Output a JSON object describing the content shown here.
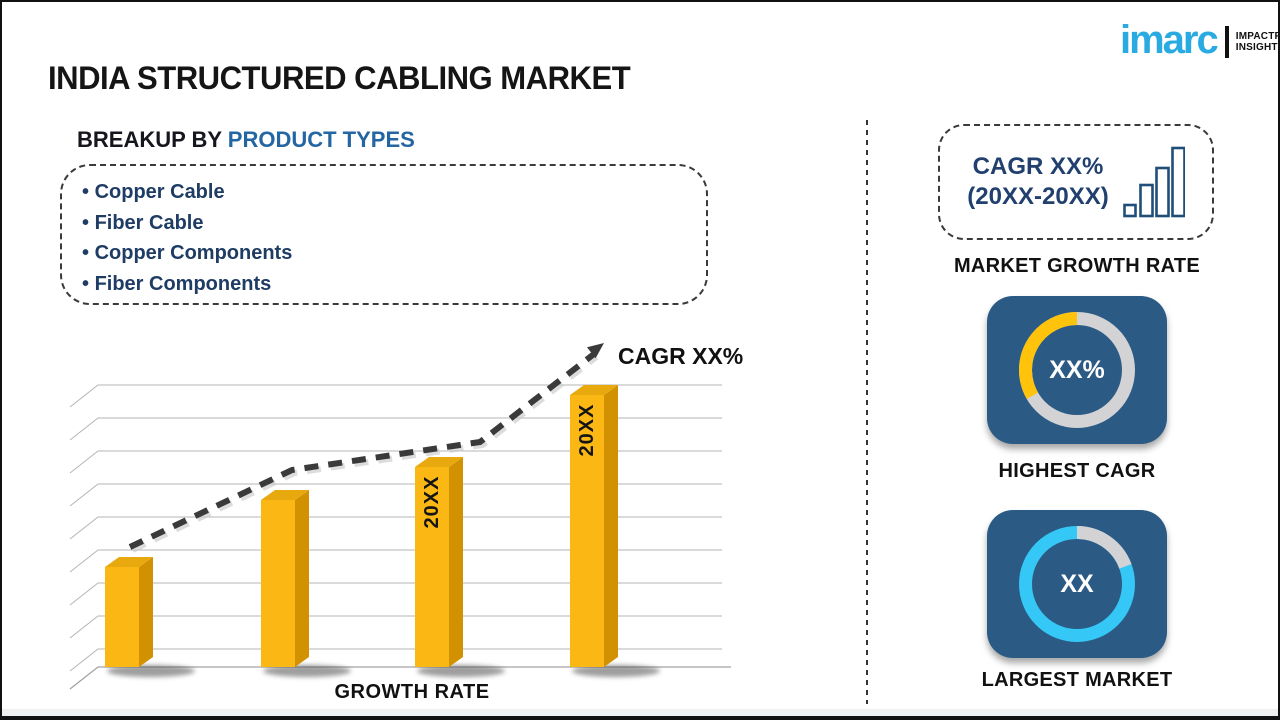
{
  "page": {
    "title": "INDIA STRUCTURED CABLING MARKET",
    "logo": {
      "brand": "imarc",
      "tagline_line1": "IMPACTFUL",
      "tagline_line2": "INSIGHTS",
      "brand_color": "#29ABE2"
    }
  },
  "breakup": {
    "label_prefix": "BREAKUP BY",
    "label_highlight": "PRODUCT TYPES",
    "items": [
      "Copper Cable",
      "Fiber Cable",
      "Copper Components",
      "Fiber Components"
    ]
  },
  "chart_data": [
    {
      "type": "bar",
      "title": "",
      "xlabel": "GROWTH RATE",
      "ylabel": "",
      "categories": [
        "",
        "",
        "20XX",
        "20XX"
      ],
      "values_rel": [
        100,
        167,
        200,
        272
      ],
      "note": "placeholder infographic chart - no numeric axis; values are relative bar heights in px",
      "gridlines": 9,
      "style_3d": true,
      "colors": {
        "front": "#FBB713",
        "top": "#E8A90F",
        "side": "#D19100"
      },
      "trend": {
        "label": "CAGR XX%",
        "style": "dashed-arrow",
        "color": "#3A3A3A"
      }
    },
    {
      "type": "pie",
      "subtype": "donut",
      "title": "HIGHEST CAGR",
      "center_label": "XX%",
      "slices": [
        {
          "name": "highlight",
          "deg": 120,
          "start_deg": 150,
          "color": "#FFC30B"
        },
        {
          "name": "track",
          "deg": 240,
          "color": "#D3D3D5"
        }
      ]
    },
    {
      "type": "pie",
      "subtype": "donut",
      "title": "LARGEST MARKET",
      "center_label": "XX",
      "slices": [
        {
          "name": "track-gap",
          "deg": 70,
          "start_deg": 270,
          "color": "#D3D3D5"
        },
        {
          "name": "highlight",
          "deg": 290,
          "color": "#35C7F5"
        }
      ]
    }
  ],
  "right_panel": {
    "cagr_box": {
      "line1": "CAGR XX%",
      "line2": "(20XX-20XX)",
      "icon": "ascending-bar-chart-icon"
    },
    "market_growth_rate_label": "MARKET GROWTH RATE",
    "highest_cagr_label": "HIGHEST CAGR",
    "largest_market_label": "LARGEST MARKET"
  },
  "colors": {
    "bar_yellow": "#FBB713",
    "donut_card_blue": "#2B5B85",
    "donut_yellow": "#FFC30B",
    "donut_cyan": "#35C7F5",
    "donut_track_gray": "#D3D3D5",
    "navy_text": "#1E3C64",
    "heading_blue": "#2465A3",
    "logo_blue": "#29ABE2"
  }
}
